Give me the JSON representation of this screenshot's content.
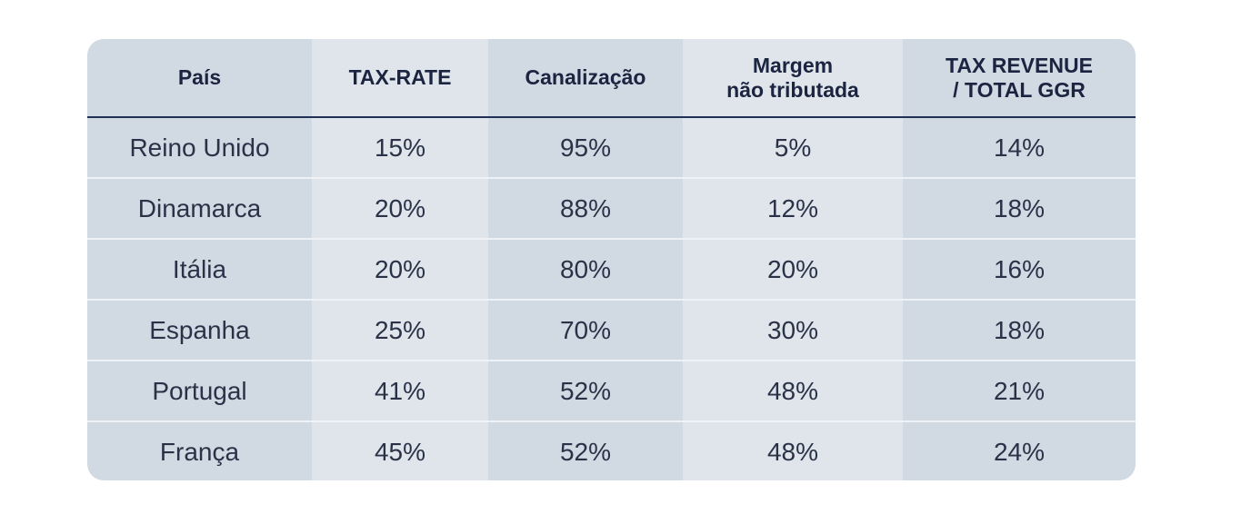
{
  "table": {
    "headers": [
      "País",
      "TAX-RATE",
      "Canalização",
      "Margem\nnão tributada",
      "TAX REVENUE\n/ TOTAL GGR"
    ],
    "rows": [
      [
        "Reino Unido",
        "15%",
        "95%",
        "5%",
        "14%"
      ],
      [
        "Dinamarca",
        "20%",
        "88%",
        "12%",
        "18%"
      ],
      [
        "Itália",
        "20%",
        "80%",
        "20%",
        "16%"
      ],
      [
        "Espanha",
        "25%",
        "70%",
        "30%",
        "18%"
      ],
      [
        "Portugal",
        "41%",
        "52%",
        "48%",
        "21%"
      ],
      [
        "França",
        "45%",
        "52%",
        "48%",
        "24%"
      ]
    ]
  },
  "colors": {
    "column_dark": "#d1dae3",
    "column_light": "#dfe5eb",
    "header_rule": "#1f2f55",
    "text": "#1b2440"
  }
}
